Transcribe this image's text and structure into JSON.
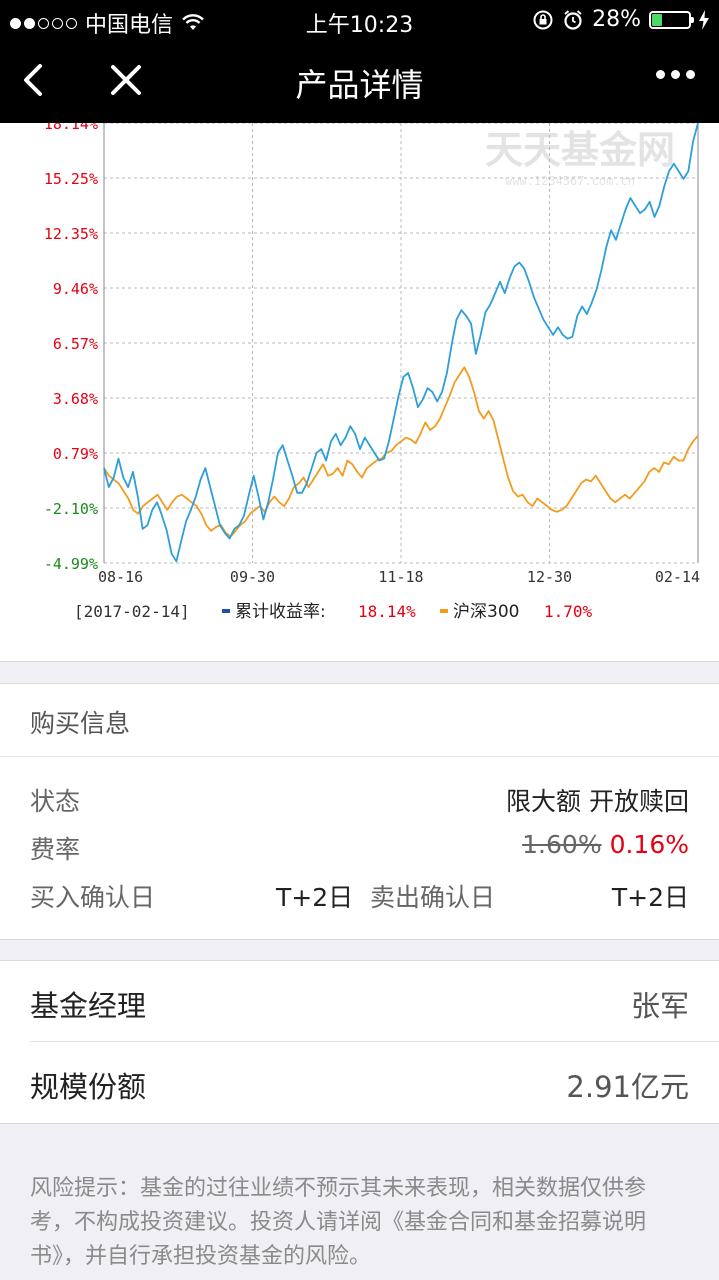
{
  "status_bar": {
    "carrier": "中国电信",
    "time": "上午10:23",
    "battery_percent": "28%",
    "battery_level": 0.28,
    "signal_bars": 2
  },
  "nav": {
    "title": "产品详情",
    "back_icon": "chevron-left-icon",
    "close_icon": "close-icon",
    "more_icon": "more-dots-icon"
  },
  "chart_data": {
    "type": "line",
    "watermark": "天天基金网",
    "watermark_url": "www.1234567.com.cn",
    "x_ticks": [
      "08-16",
      "09-30",
      "11-18",
      "12-30",
      "02-14"
    ],
    "y_ticks": [
      "18.14%",
      "15.25%",
      "12.35%",
      "9.46%",
      "6.57%",
      "3.68%",
      "0.79%",
      "-2.10%",
      "-4.99%"
    ],
    "ylim": [
      -4.99,
      18.14
    ],
    "grid": true,
    "legend": {
      "date": "[2017-02-14]",
      "items": [
        {
          "label": "累计收益率",
          "value": "18.14%",
          "color": "#1f4fa8"
        },
        {
          "label": "沪深300",
          "value": "1.70%",
          "color": "#f39b1f"
        }
      ]
    },
    "series": [
      {
        "name": "累计收益率",
        "color": "#2c9fd9",
        "values": [
          0.0,
          -1.0,
          -0.5,
          0.5,
          -0.5,
          -1.0,
          -0.2,
          -1.5,
          -3.2,
          -3.0,
          -2.2,
          -1.8,
          -2.5,
          -3.3,
          -4.5,
          -4.9,
          -3.8,
          -2.8,
          -2.2,
          -1.5,
          -0.6,
          0.0,
          -1.0,
          -2.0,
          -3.0,
          -3.4,
          -3.7,
          -3.2,
          -3.0,
          -2.5,
          -1.4,
          -0.4,
          -1.5,
          -2.7,
          -1.8,
          -0.6,
          0.8,
          1.2,
          0.4,
          -0.4,
          -1.3,
          -1.3,
          -0.8,
          0.0,
          0.8,
          1.0,
          0.4,
          1.4,
          1.8,
          1.2,
          1.6,
          2.2,
          1.8,
          1.0,
          1.6,
          1.2,
          0.8,
          0.4,
          0.5,
          1.4,
          2.6,
          3.8,
          4.8,
          5.0,
          4.2,
          3.2,
          3.6,
          4.2,
          4.0,
          3.5,
          4.0,
          5.0,
          6.5,
          7.8,
          8.3,
          8.0,
          7.6,
          6.0,
          7.0,
          8.2,
          8.6,
          9.2,
          9.8,
          9.2,
          10.0,
          10.6,
          10.8,
          10.5,
          9.8,
          9.0,
          8.4,
          7.8,
          7.4,
          7.0,
          7.4,
          7.0,
          6.8,
          6.9,
          8.0,
          8.5,
          8.1,
          8.7,
          9.4,
          10.4,
          11.6,
          12.5,
          12.0,
          12.8,
          13.6,
          14.2,
          13.8,
          13.4,
          13.6,
          14.0,
          13.2,
          13.8,
          14.8,
          15.6,
          16.0,
          15.6,
          15.2,
          15.6,
          17.2,
          18.14
        ]
      },
      {
        "name": "沪深300",
        "color": "#f39b1f",
        "values": [
          0.0,
          -0.4,
          -0.6,
          -0.8,
          -1.2,
          -1.6,
          -2.2,
          -2.4,
          -2.0,
          -1.8,
          -1.6,
          -1.4,
          -1.8,
          -2.2,
          -1.8,
          -1.5,
          -1.4,
          -1.6,
          -1.8,
          -2.0,
          -2.4,
          -3.0,
          -3.3,
          -3.1,
          -3.0,
          -3.4,
          -3.6,
          -3.3,
          -3.0,
          -2.8,
          -2.4,
          -2.2,
          -2.0,
          -2.3,
          -1.8,
          -1.5,
          -1.8,
          -2.0,
          -1.6,
          -1.0,
          -0.8,
          -0.5,
          -1.0,
          -0.6,
          -0.2,
          0.2,
          -0.4,
          -0.3,
          0.0,
          -0.4,
          0.4,
          0.2,
          -0.2,
          -0.5,
          0.0,
          0.2,
          0.4,
          0.5,
          0.8,
          0.9,
          1.2,
          1.4,
          1.6,
          1.5,
          1.3,
          1.8,
          2.4,
          2.0,
          2.2,
          2.6,
          3.2,
          3.8,
          4.5,
          4.9,
          5.3,
          4.8,
          4.0,
          3.0,
          2.6,
          3.0,
          2.5,
          1.5,
          0.5,
          -0.5,
          -1.2,
          -1.5,
          -1.4,
          -1.8,
          -2.0,
          -1.6,
          -1.8,
          -2.0,
          -2.2,
          -2.3,
          -2.2,
          -2.0,
          -1.6,
          -1.2,
          -0.8,
          -0.6,
          -0.7,
          -0.4,
          -0.8,
          -1.2,
          -1.6,
          -1.8,
          -1.6,
          -1.4,
          -1.6,
          -1.3,
          -1.0,
          -0.7,
          -0.2,
          0.0,
          -0.2,
          0.3,
          0.2,
          0.6,
          0.4,
          0.4,
          1.0,
          1.4,
          1.7
        ]
      }
    ]
  },
  "buy_info": {
    "title": "购买信息",
    "status_label": "状态",
    "status_value": "限大额 开放赎回",
    "fee_label": "费率",
    "fee_original": "1.60%",
    "fee_discounted": "0.16%",
    "buy_confirm_label": "买入确认日",
    "buy_confirm_value": "T+2日",
    "sell_confirm_label": "卖出确认日",
    "sell_confirm_value": "T+2日"
  },
  "fund": {
    "manager_label": "基金经理",
    "manager_value": "张军",
    "scale_label": "规模份额",
    "scale_value": "2.91亿元"
  },
  "risk_notice": "风险提示：基金的过往业绩不预示其未来表现，相关数据仅供参考，不构成投资建议。投资人请详阅《基金合同和基金招募说明书》，并自行承担投资基金的风险。"
}
